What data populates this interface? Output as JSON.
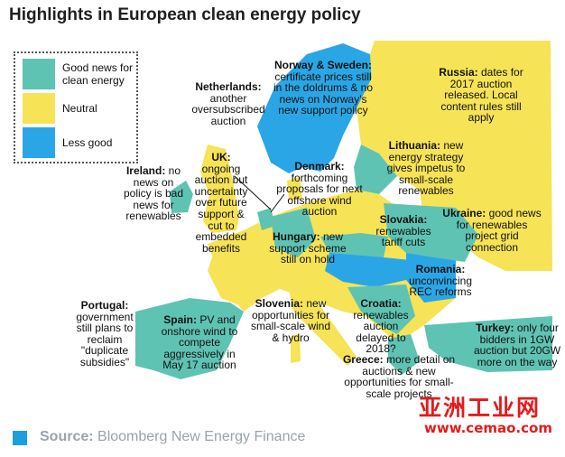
{
  "title": "Highlights in European clean energy policy",
  "colors": {
    "good": "#5fc3b3",
    "neutral": "#f6e356",
    "less_good": "#2aa6e6",
    "land_outside": "#e0e0e0",
    "sea": "#ffffff"
  },
  "legend": {
    "items": [
      {
        "label": "Good news for clean energy",
        "color": "#5fc3b3"
      },
      {
        "label": "Neutral",
        "color": "#f6e356"
      },
      {
        "label": "Less good",
        "color": "#2aa6e6"
      }
    ]
  },
  "notes": {
    "ireland": {
      "name": "Ireland:",
      "text": "no news on policy is bad news for renewables"
    },
    "netherlands": {
      "name": "Netherlands:",
      "text": "another oversubscribed auction"
    },
    "uk": {
      "name": "UK:",
      "text": "ongoing auction but uncertainty over future support & cut to embedded benefits"
    },
    "norway": {
      "name": "Norway & Sweden:",
      "text": "certificate prices still in the doldrums & no news on Norway's new support policy"
    },
    "russia": {
      "name": "Russia:",
      "text": "dates for 2017 auction released. Local content rules still apply"
    },
    "lithuania": {
      "name": "Lithuania:",
      "text": "new energy strategy gives impetus to small-scale renewables"
    },
    "denmark": {
      "name": "Denmark:",
      "text": "forthcoming proposals for next offshore wind auction"
    },
    "slovakia": {
      "name": "Slovakia:",
      "text": "renewables tariff cuts"
    },
    "ukraine": {
      "name": "Ukraine:",
      "text": "good news for renewables project grid connection"
    },
    "hungary": {
      "name": "Hungary:",
      "text": "new support scheme still on hold"
    },
    "romania": {
      "name": "Romania:",
      "text": "unconvincing REC reforms"
    },
    "portugal": {
      "name": "Portugal:",
      "text": "government still plans to reclaim \"duplicate subsidies\""
    },
    "spain": {
      "name": "Spain:",
      "text": "PV and onshore wind to compete aggressively in May 17 auction"
    },
    "slovenia": {
      "name": "Slovenia:",
      "text": "new opportunities for small-scale wind & hydro"
    },
    "croatia": {
      "name": "Croatia:",
      "text": "renewables auction delayed to 2018?"
    },
    "turkey": {
      "name": "Turkey:",
      "text": "only four bidders in 1GW auction but 20GW more on the way"
    },
    "greece": {
      "name": "Greece:",
      "text": "more detail on auctions & new opportunities for small-scale projects"
    }
  },
  "source": {
    "label": "Source:",
    "text": "Bloomberg New Energy Finance"
  },
  "watermark": {
    "main": "亚洲工业网",
    "url": "www.cemao.com"
  }
}
